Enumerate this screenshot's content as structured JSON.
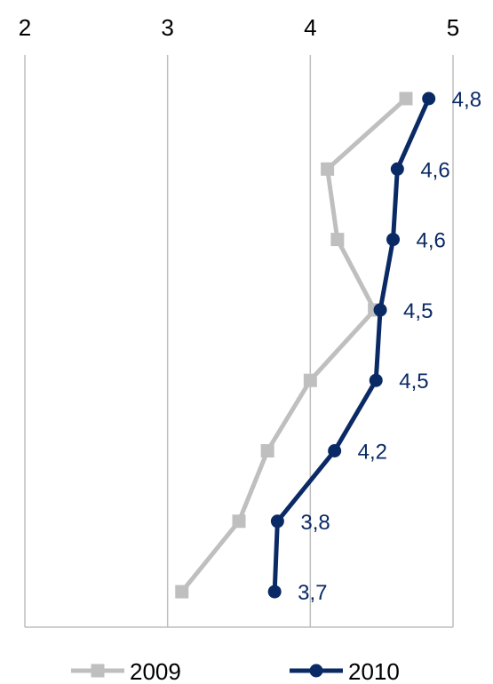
{
  "chart_data": {
    "type": "line",
    "orientation": "horizontal-values",
    "x_axis": {
      "position": "top",
      "min": 2,
      "max": 5,
      "ticks": [
        2,
        3,
        4,
        5
      ],
      "tick_labels": [
        "2",
        "3",
        "4",
        "5"
      ]
    },
    "grid": {
      "vertical": true,
      "horizontal": false
    },
    "legend": {
      "placement": "bottom"
    },
    "series": [
      {
        "name": "2009",
        "color": "#bfbfbf",
        "marker": "square",
        "values": [
          4.67,
          4.12,
          4.19,
          4.45,
          4.0,
          3.7,
          3.5,
          3.1
        ],
        "labels": []
      },
      {
        "name": "2010",
        "color": "#0a2a66",
        "marker": "circle",
        "values": [
          4.83,
          4.61,
          4.58,
          4.49,
          4.46,
          4.17,
          3.77,
          3.75
        ],
        "labels": [
          "4,8",
          "4,6",
          "4,6",
          "4,5",
          "4,5",
          "4,2",
          "3,8",
          "3,7"
        ]
      }
    ]
  }
}
